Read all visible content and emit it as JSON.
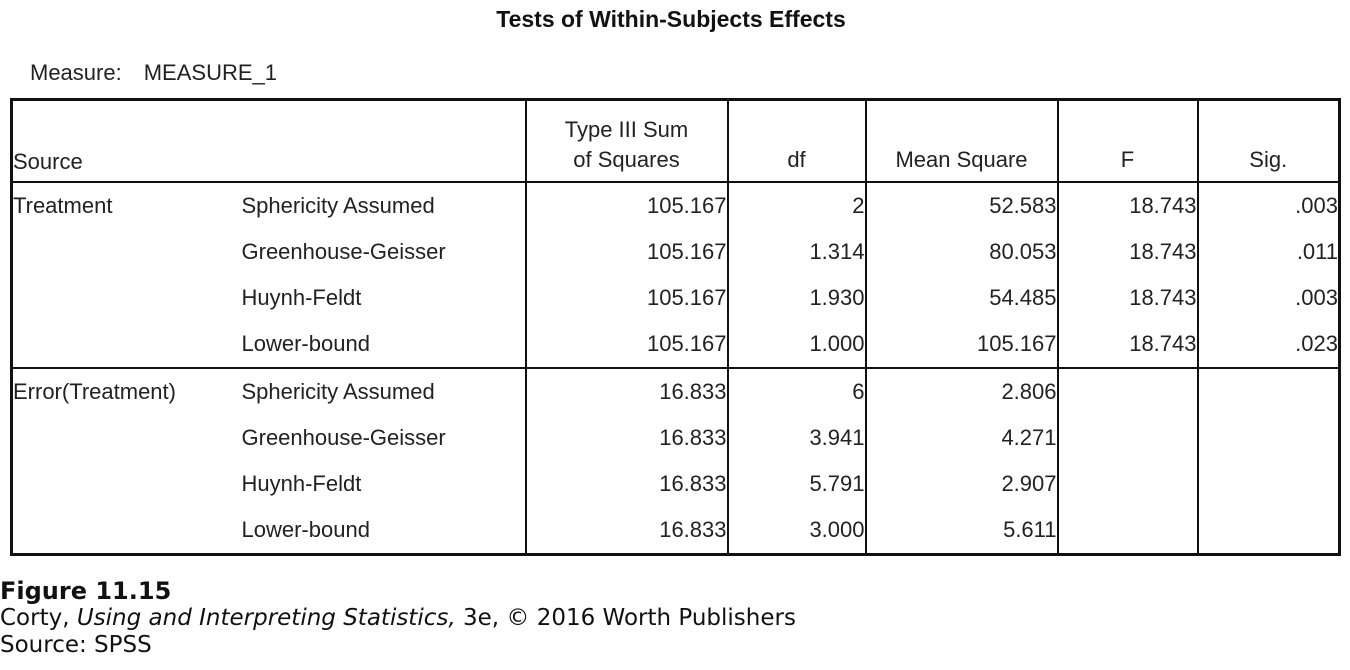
{
  "table_title": "Tests of Within-Subjects Effects",
  "measure_label": "Measure:",
  "measure_value": "MEASURE_1",
  "headers": {
    "source": "Source",
    "ss_line1": "Type III Sum",
    "ss_line2": "of Squares",
    "df": "df",
    "ms": "Mean Square",
    "f": "F",
    "sig": "Sig."
  },
  "groups": [
    {
      "source": "Treatment",
      "rows": [
        {
          "correction": "Sphericity Assumed",
          "ss": "105.167",
          "df": "2",
          "ms": "52.583",
          "f": "18.743",
          "sig": ".003"
        },
        {
          "correction": "Greenhouse-Geisser",
          "ss": "105.167",
          "df": "1.314",
          "ms": "80.053",
          "f": "18.743",
          "sig": ".011"
        },
        {
          "correction": "Huynh-Feldt",
          "ss": "105.167",
          "df": "1.930",
          "ms": "54.485",
          "f": "18.743",
          "sig": ".003"
        },
        {
          "correction": "Lower-bound",
          "ss": "105.167",
          "df": "1.000",
          "ms": "105.167",
          "f": "18.743",
          "sig": ".023"
        }
      ]
    },
    {
      "source": "Error(Treatment)",
      "rows": [
        {
          "correction": "Sphericity Assumed",
          "ss": "16.833",
          "df": "6",
          "ms": "2.806",
          "f": "",
          "sig": ""
        },
        {
          "correction": "Greenhouse-Geisser",
          "ss": "16.833",
          "df": "3.941",
          "ms": "4.271",
          "f": "",
          "sig": ""
        },
        {
          "correction": "Huynh-Feldt",
          "ss": "16.833",
          "df": "5.791",
          "ms": "2.907",
          "f": "",
          "sig": ""
        },
        {
          "correction": "Lower-bound",
          "ss": "16.833",
          "df": "3.000",
          "ms": "5.611",
          "f": "",
          "sig": ""
        }
      ]
    }
  ],
  "caption": {
    "figure": "Figure 11.15",
    "line2_author": "Corty, ",
    "line2_book": "Using and Interpreting Statistics,",
    "line2_rest": " 3e, © 2016 Worth Publishers",
    "line3": "Source: SPSS"
  }
}
